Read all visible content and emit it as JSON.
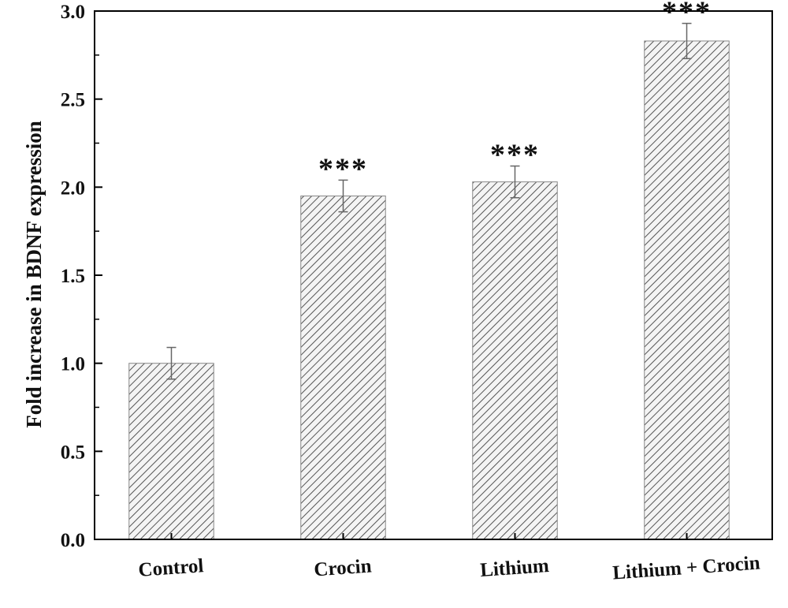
{
  "chart_data": {
    "type": "bar",
    "title": "",
    "xlabel": "",
    "ylabel": "Fold increase in BDNF expression",
    "categories": [
      "Control",
      "Crocin",
      "Lithium",
      "Lithium + Crocin"
    ],
    "values": [
      1.0,
      1.95,
      2.03,
      2.83
    ],
    "errors": [
      0.09,
      0.09,
      0.09,
      0.1
    ],
    "significance": [
      "",
      "***",
      "***",
      "***"
    ],
    "ylim": [
      0.0,
      3.0
    ],
    "yticks": [
      "0.0",
      "0.5",
      "1.0",
      "1.5",
      "2.0",
      "2.5",
      "3.0"
    ],
    "grid": false,
    "bar_fill": "hatched",
    "colors": {
      "bar_hatch": "#555555",
      "bar_background": "#f4f4f4",
      "axis": "#000000"
    }
  }
}
